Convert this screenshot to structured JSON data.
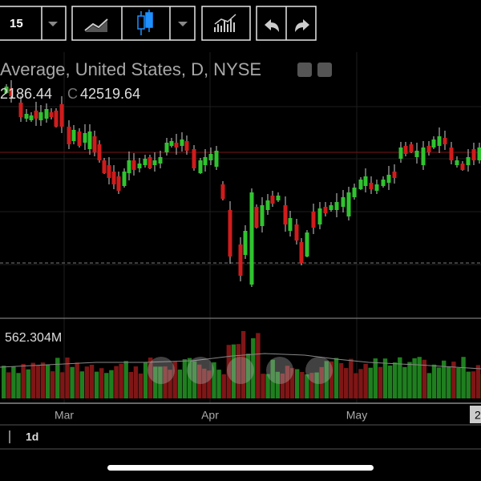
{
  "toolbar": {
    "interval": "15"
  },
  "header": {
    "title": "Average, United States, D, NYSE",
    "low_value": "2186.44",
    "close_label": "C",
    "close_value": "42519.64"
  },
  "volume": {
    "label": "562.304M"
  },
  "time_axis": {
    "labels": [
      "Mar",
      "Apr",
      "May",
      "2"
    ]
  },
  "footer": {
    "range": "1d"
  }
}
